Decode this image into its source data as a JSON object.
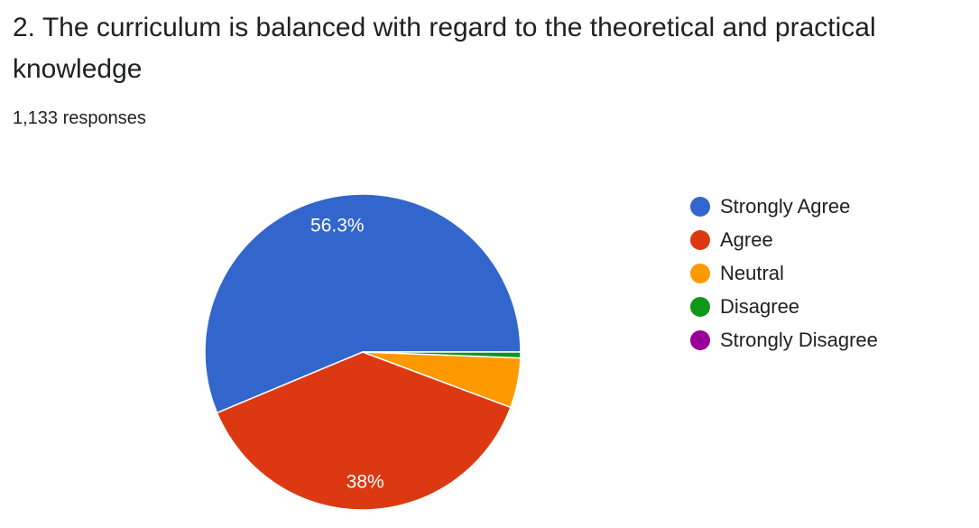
{
  "question": {
    "title": "2. The curriculum is balanced with regard to the theoretical and practical knowledge",
    "responses": "1,133 responses"
  },
  "chart_data": {
    "type": "pie",
    "total_responses": 1133,
    "slices": [
      {
        "label": "Strongly Agree",
        "percent": 56.3,
        "color": "#3366cc",
        "data_label": "56.3%"
      },
      {
        "label": "Agree",
        "percent": 38.0,
        "color": "#dc3912",
        "data_label": "38%"
      },
      {
        "label": "Neutral",
        "percent": 5.1,
        "color": "#ff9900",
        "data_label": ""
      },
      {
        "label": "Disagree",
        "percent": 0.6,
        "color": "#109618",
        "data_label": ""
      },
      {
        "label": "Strongly Disagree",
        "percent": 0.0,
        "color": "#990099",
        "data_label": ""
      }
    ],
    "legend_position": "right"
  }
}
